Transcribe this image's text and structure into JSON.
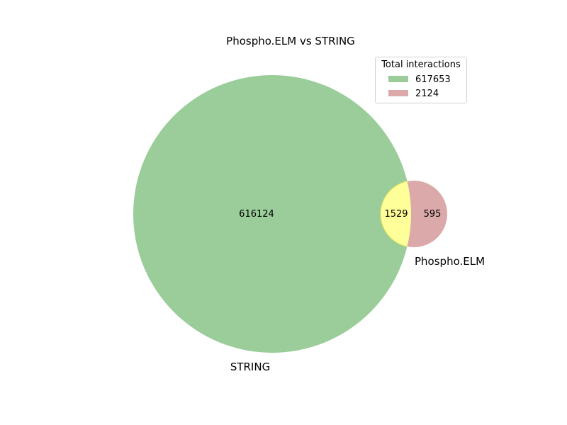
{
  "chart_data": {
    "type": "venn",
    "title": "Phospho.ELM vs STRING",
    "sets": [
      {
        "name": "STRING",
        "total": 617653,
        "only": 616124,
        "color": "#9acd99"
      },
      {
        "name": "Phospho.ELM",
        "total": 2124,
        "only": 595,
        "color": "#dba9a9"
      }
    ],
    "intersection": {
      "value": 1529,
      "color": "#ffff99"
    },
    "legend": {
      "title": "Total interactions",
      "placement": "top-right",
      "entries": [
        {
          "label": "617653",
          "color": "#9acd99"
        },
        {
          "label": "2124",
          "color": "#dba9a9"
        }
      ]
    }
  }
}
